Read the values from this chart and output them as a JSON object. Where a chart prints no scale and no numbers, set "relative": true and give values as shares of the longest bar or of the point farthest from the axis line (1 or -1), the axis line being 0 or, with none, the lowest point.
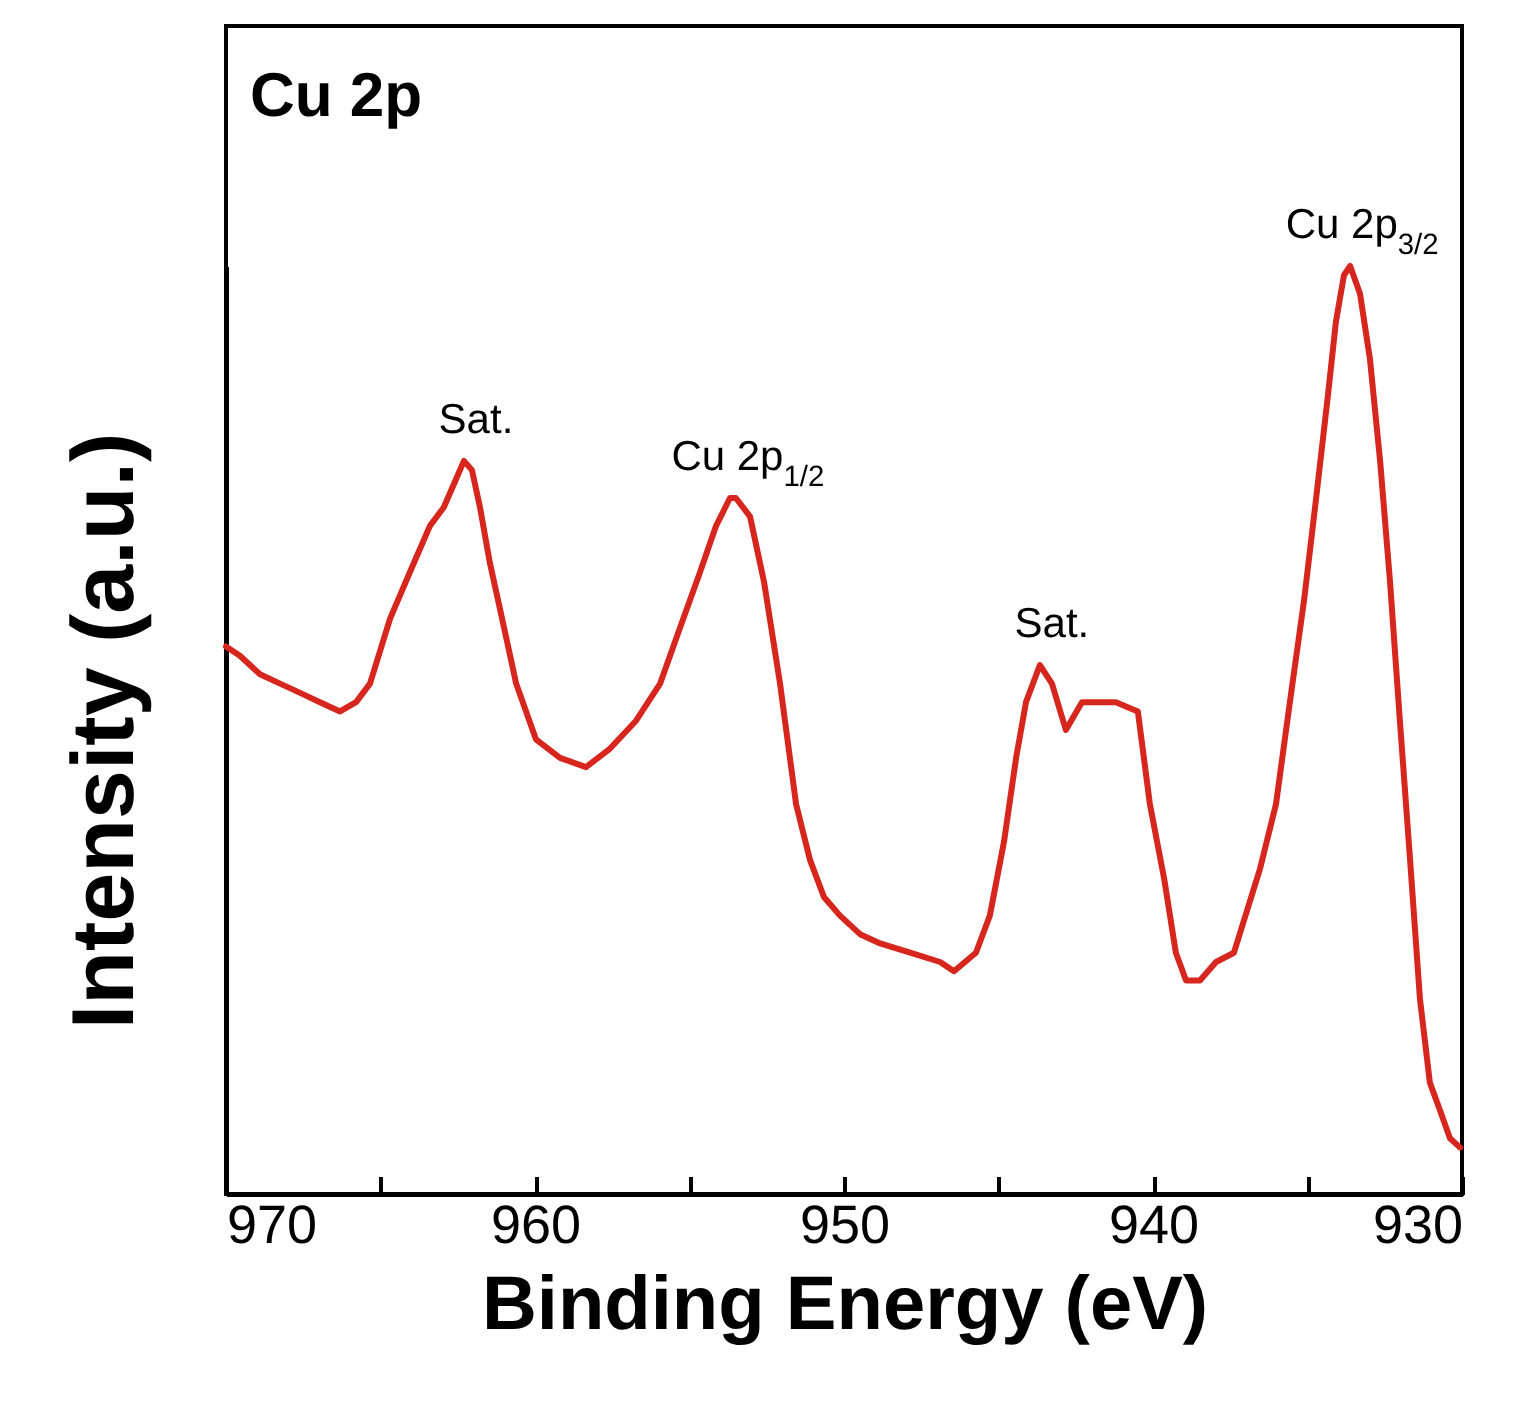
{
  "chart_data": {
    "type": "line",
    "title": "Cu 2p",
    "xlabel": "Binding Energy (eV)",
    "ylabel": "Intensity (a.u.)",
    "relative": true,
    "xlim": [
      970,
      930
    ],
    "xticks": [
      970,
      {
        "value": 965,
        "label": null
      },
      960,
      {
        "value": 955,
        "label": null
      },
      950,
      {
        "value": 945,
        "label": null
      },
      940,
      {
        "value": 935,
        "label": null
      },
      930
    ],
    "x": [
      970.0,
      969.55,
      968.9,
      968.25,
      967.6,
      966.96,
      966.31,
      965.79,
      965.34,
      964.69,
      964.05,
      963.4,
      962.95,
      962.56,
      962.3,
      962.04,
      961.78,
      961.46,
      961.13,
      960.61,
      959.97,
      959.19,
      958.35,
      957.57,
      956.73,
      955.95,
      955.31,
      954.66,
      954.14,
      953.69,
      953.5,
      953.04,
      952.59,
      952.07,
      951.55,
      951.1,
      950.65,
      950.13,
      949.48,
      948.83,
      947.86,
      946.89,
      946.44,
      945.73,
      945.28,
      944.82,
      944.43,
      944.11,
      943.66,
      943.27,
      942.82,
      942.3,
      941.72,
      941.2,
      940.49,
      940.1,
      939.64,
      939.26,
      938.93,
      938.48,
      937.96,
      937.38,
      936.54,
      936.02,
      935.57,
      935.11,
      934.72,
      934.34,
      934.08,
      933.82,
      933.62,
      933.3,
      932.98,
      932.65,
      932.33,
      932.01,
      931.68,
      931.36,
      931.04,
      930.71,
      930.39,
      930.06
    ],
    "series": [
      {
        "color": "#d7261e",
        "values": [
          0.59,
          0.58,
          0.56,
          0.55,
          0.54,
          0.53,
          0.52,
          0.53,
          0.55,
          0.62,
          0.67,
          0.72,
          0.74,
          0.77,
          0.79,
          0.78,
          0.74,
          0.68,
          0.63,
          0.55,
          0.49,
          0.47,
          0.46,
          0.48,
          0.51,
          0.55,
          0.61,
          0.67,
          0.72,
          0.75,
          0.75,
          0.73,
          0.66,
          0.55,
          0.42,
          0.36,
          0.32,
          0.3,
          0.28,
          0.27,
          0.26,
          0.25,
          0.24,
          0.26,
          0.3,
          0.38,
          0.47,
          0.53,
          0.57,
          0.55,
          0.5,
          0.53,
          0.53,
          0.53,
          0.52,
          0.42,
          0.34,
          0.26,
          0.23,
          0.23,
          0.25,
          0.26,
          0.35,
          0.42,
          0.53,
          0.64,
          0.75,
          0.86,
          0.94,
          0.99,
          1,
          0.97,
          0.9,
          0.79,
          0.66,
          0.51,
          0.36,
          0.21,
          0.12,
          0.09,
          0.06,
          0.05
        ]
      }
    ],
    "annotations": [
      {
        "text": "Sat.",
        "x": 962.3,
        "y": 0.79
      },
      {
        "text": "Cu 2p$_{1/2}$",
        "x": 953.5,
        "y": 0.75
      },
      {
        "text": "Sat.",
        "x": 943.66,
        "y": 0.57
      },
      {
        "text": "Cu 2p$_{3/2}$",
        "x": 933.62,
        "y": 1
      }
    ]
  }
}
